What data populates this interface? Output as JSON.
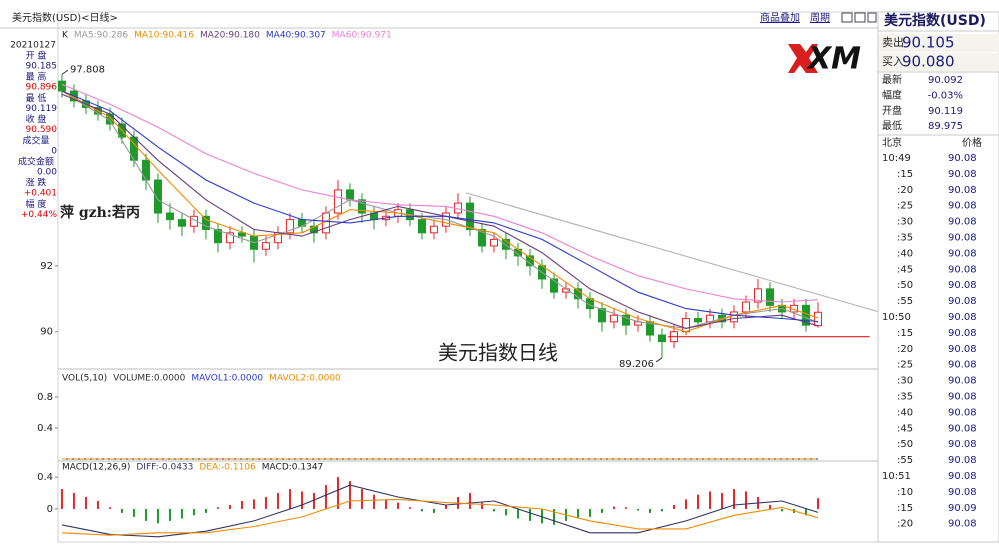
{
  "header": {
    "title": "美元指数(USD)<日线>",
    "links": [
      "商品叠加",
      "周期"
    ]
  },
  "info_panel": {
    "date": "20210127",
    "items": [
      {
        "label": "开 盘",
        "value": "90.185",
        "color": "#1a1a80"
      },
      {
        "label": "最 高",
        "value": "90.896",
        "color": "#e00000"
      },
      {
        "label": "最 低",
        "value": "90.119",
        "color": "#1a1a80"
      },
      {
        "label": "收 盘",
        "value": "90.590",
        "color": "#e00000"
      },
      {
        "label": "成交量",
        "value": "0",
        "color": "#1a1a80"
      },
      {
        "label": "成交金额",
        "value": "0.00",
        "color": "#1a1a80"
      },
      {
        "label": "涨 跌",
        "value": "+0.401",
        "color": "#e00000"
      },
      {
        "label": "幅 度",
        "value": "+0.44%",
        "color": "#e00000"
      }
    ]
  },
  "chart_data": [
    {
      "type": "candlestick",
      "label": "K",
      "xlim": [
        -0.33,
        68
      ],
      "ylim": [
        88.9,
        99.15
      ],
      "yticks": [
        90,
        92
      ],
      "up_color": "#e8262a",
      "down_color": "#1f9a2a",
      "open": [
        97.6,
        97.3,
        97.0,
        96.8,
        96.6,
        96.3,
        95.9,
        95.2,
        94.6,
        93.6,
        93.4,
        93.2,
        93.5,
        93.1,
        92.7,
        93.0,
        92.9,
        92.5,
        92.7,
        93.0,
        93.4,
        93.2,
        93.0,
        93.6,
        94.3,
        94.0,
        93.6,
        93.4,
        93.5,
        93.7,
        93.4,
        93.0,
        93.2,
        93.6,
        93.9,
        93.1,
        92.6,
        92.8,
        92.5,
        92.3,
        92.0,
        91.6,
        91.2,
        91.3,
        91.0,
        90.7,
        90.3,
        90.5,
        90.2,
        90.3,
        89.9,
        89.7,
        90.0,
        90.4,
        90.3,
        90.5,
        90.3,
        90.6,
        90.9,
        91.3,
        90.8,
        90.6,
        90.8,
        90.185
      ],
      "high": [
        97.808,
        97.5,
        97.2,
        97.0,
        96.8,
        96.5,
        96.1,
        95.4,
        94.8,
        93.9,
        93.6,
        93.7,
        93.7,
        93.3,
        93.2,
        93.2,
        93.1,
        92.9,
        93.2,
        93.6,
        93.6,
        93.4,
        93.8,
        94.6,
        94.5,
        94.2,
        93.8,
        93.7,
        93.9,
        93.9,
        93.6,
        93.4,
        93.8,
        94.2,
        94.1,
        93.3,
        93.0,
        93.0,
        92.7,
        92.5,
        92.2,
        91.8,
        91.5,
        91.5,
        91.2,
        90.9,
        90.7,
        90.7,
        90.5,
        90.5,
        90.1,
        90.2,
        90.6,
        90.6,
        90.7,
        90.7,
        90.8,
        91.1,
        91.6,
        91.5,
        91.0,
        91.0,
        91.0,
        90.896
      ],
      "low": [
        97.1,
        96.8,
        96.6,
        96.4,
        96.1,
        95.7,
        95.0,
        94.3,
        93.3,
        93.1,
        92.9,
        93.0,
        92.8,
        92.4,
        92.5,
        92.7,
        92.1,
        92.3,
        92.5,
        92.8,
        93.0,
        92.7,
        92.8,
        93.4,
        93.8,
        93.3,
        93.1,
        93.2,
        93.3,
        93.2,
        92.8,
        92.8,
        93.0,
        93.4,
        92.9,
        92.4,
        92.4,
        92.2,
        92.0,
        91.7,
        91.3,
        91.0,
        91.0,
        90.7,
        90.4,
        90.0,
        90.1,
        89.9,
        90.0,
        89.7,
        89.206,
        89.5,
        89.9,
        90.1,
        90.1,
        90.1,
        90.1,
        90.4,
        90.7,
        90.6,
        90.4,
        90.4,
        90.0,
        90.119
      ],
      "close": [
        97.3,
        97.0,
        96.8,
        96.6,
        96.3,
        95.9,
        95.2,
        94.6,
        93.6,
        93.4,
        93.2,
        93.5,
        93.1,
        92.7,
        93.0,
        92.9,
        92.5,
        92.7,
        93.0,
        93.4,
        93.2,
        93.0,
        93.6,
        94.3,
        94.0,
        93.6,
        93.4,
        93.5,
        93.7,
        93.4,
        93.0,
        93.2,
        93.6,
        93.9,
        93.1,
        92.6,
        92.8,
        92.5,
        92.3,
        92.0,
        91.6,
        91.2,
        91.3,
        91.0,
        90.7,
        90.3,
        90.5,
        90.2,
        90.3,
        89.9,
        89.7,
        90.0,
        90.4,
        90.3,
        90.5,
        90.3,
        90.6,
        90.9,
        91.3,
        90.8,
        90.6,
        90.8,
        90.2,
        90.59
      ],
      "series": [
        {
          "name": "MA5:90.286",
          "color": "#9a9a9a",
          "x": [
            0,
            4,
            8,
            12,
            16,
            20,
            24,
            28,
            32,
            36,
            40,
            44,
            48,
            52,
            56,
            60,
            63
          ],
          "values": [
            97.3,
            96.4,
            94.0,
            93.2,
            92.7,
            93.2,
            94.0,
            93.6,
            93.4,
            92.9,
            91.8,
            90.8,
            90.3,
            90.1,
            90.5,
            90.7,
            90.286
          ]
        },
        {
          "name": "MA10:90.416",
          "color": "#f08c00",
          "x": [
            0,
            4,
            8,
            12,
            16,
            20,
            24,
            28,
            32,
            36,
            40,
            44,
            48,
            52,
            56,
            60,
            63
          ],
          "values": [
            97.3,
            96.5,
            94.9,
            93.4,
            92.9,
            93.0,
            93.7,
            93.6,
            93.3,
            93.0,
            92.0,
            91.0,
            90.4,
            90.0,
            90.5,
            90.8,
            90.42
          ]
        },
        {
          "name": "MA20:90.180",
          "color": "#6a3a7a",
          "x": [
            0,
            4,
            8,
            12,
            16,
            20,
            24,
            28,
            32,
            36,
            40,
            44,
            48,
            52,
            56,
            60,
            63
          ],
          "values": [
            97.2,
            96.6,
            95.2,
            94.0,
            93.1,
            92.9,
            93.4,
            93.8,
            93.5,
            93.2,
            92.4,
            91.3,
            90.6,
            90.1,
            90.4,
            90.5,
            90.18
          ]
        },
        {
          "name": "MA40:90.307",
          "color": "#2a3ad0",
          "x": [
            0,
            4,
            8,
            12,
            16,
            20,
            24,
            28,
            32,
            36,
            40,
            44,
            48,
            52,
            56,
            60,
            63
          ],
          "values": [
            97.3,
            96.7,
            95.6,
            94.6,
            93.9,
            93.4,
            93.3,
            93.5,
            93.5,
            93.3,
            92.8,
            92.0,
            91.2,
            90.7,
            90.5,
            90.4,
            90.31
          ]
        },
        {
          "name": "MA60:90.971",
          "color": "#ec80d8",
          "x": [
            0,
            4,
            8,
            12,
            16,
            20,
            24,
            28,
            32,
            36,
            40,
            44,
            48,
            52,
            56,
            60,
            63
          ],
          "values": [
            97.5,
            96.9,
            96.2,
            95.4,
            94.8,
            94.3,
            94.0,
            93.85,
            93.8,
            93.5,
            93.0,
            92.3,
            91.7,
            91.3,
            91.0,
            90.9,
            90.97
          ]
        }
      ],
      "overlays": [
        {
          "color": "#b4b4b4",
          "x": [
            33.67,
            68
          ],
          "values": [
            94.21,
            90.61
          ]
        },
        {
          "color": "#e02020",
          "x": [
            50.5,
            67.3
          ],
          "values": [
            89.85,
            89.85
          ]
        }
      ],
      "annotations": [
        {
          "label": "97.808",
          "x": 0,
          "y": 97.808
        },
        {
          "label": "89.206",
          "x": 50,
          "y": 89.206
        }
      ],
      "texts": [
        "萍  gzh:若丙",
        "美元指数日线"
      ]
    },
    {
      "type": "volume",
      "label": "VOL(5,10)",
      "xlim": [
        -0.33,
        68
      ],
      "ylim": [
        0,
        1.12
      ],
      "yticks": [
        0.4,
        0.8
      ],
      "series": [
        {
          "name": "VOLUME:0.0000",
          "color": "#333333",
          "x": [
            0,
            63
          ],
          "values": [
            0,
            0
          ]
        },
        {
          "name": "MAVOL1:0.0000",
          "color": "#2a3ad0",
          "x": [
            0,
            63
          ],
          "values": [
            0,
            0
          ]
        },
        {
          "name": "MAVOL2:0.0000",
          "color": "#f08c00",
          "x": [
            0,
            63
          ],
          "values": [
            0,
            0
          ]
        }
      ]
    },
    {
      "type": "macd",
      "label": "MACD(12,26,9)",
      "xlim": [
        -0.33,
        68
      ],
      "ylim": [
        -0.39,
        0.59
      ],
      "yticks": [
        0,
        0.4
      ],
      "up_color": "#e8262a",
      "down_color": "#1f9a2a",
      "series": [
        {
          "name": "DIFF:-0.0433",
          "color": "#333366",
          "x": [
            0,
            4,
            8,
            12,
            16,
            20,
            24,
            28,
            32,
            36,
            40,
            44,
            48,
            52,
            56,
            60,
            63
          ],
          "values": [
            -0.2,
            -0.32,
            -0.35,
            -0.28,
            -0.15,
            0.05,
            0.3,
            0.15,
            0.05,
            0.1,
            -0.1,
            -0.3,
            -0.3,
            -0.15,
            0.05,
            0.1,
            -0.0433
          ]
        },
        {
          "name": "DEA:-0.1106",
          "color": "#f08c00",
          "x": [
            0,
            4,
            8,
            12,
            16,
            20,
            24,
            28,
            32,
            36,
            40,
            44,
            48,
            52,
            56,
            60,
            63
          ],
          "values": [
            -0.3,
            -0.33,
            -0.3,
            -0.3,
            -0.22,
            -0.1,
            0.1,
            0.12,
            0.08,
            0.05,
            0.0,
            -0.15,
            -0.25,
            -0.25,
            -0.08,
            0.02,
            -0.1106
          ]
        }
      ],
      "histogram": {
        "name": "MACD:0.1347",
        "values": [
          0.25,
          0.2,
          0.15,
          0.1,
          0.02,
          -0.05,
          -0.1,
          -0.15,
          -0.18,
          -0.15,
          -0.12,
          -0.08,
          -0.05,
          0.02,
          0.05,
          0.1,
          0.12,
          0.15,
          0.2,
          0.25,
          0.22,
          0.2,
          0.3,
          0.4,
          0.35,
          0.25,
          0.18,
          0.12,
          0.08,
          0.02,
          -0.03,
          -0.05,
          0.05,
          0.15,
          0.2,
          0.08,
          -0.03,
          -0.08,
          -0.12,
          -0.15,
          -0.18,
          -0.2,
          -0.15,
          -0.12,
          -0.1,
          -0.05,
          0.03,
          0.02,
          -0.02,
          -0.05,
          -0.03,
          0.05,
          0.12,
          0.18,
          0.22,
          0.2,
          0.25,
          0.22,
          0.15,
          0.05,
          -0.03,
          -0.05,
          -0.08,
          0.1347
        ]
      }
    }
  ],
  "quote_panel": {
    "title": "美元指数(USD)",
    "rows": [
      [
        "卖出",
        "90.105"
      ],
      [
        "买入",
        "90.080"
      ]
    ],
    "stats": [
      [
        "最新",
        "90.092"
      ],
      [
        "幅度",
        "-0.03%"
      ],
      [
        "开盘",
        "90.119"
      ],
      [
        "最低",
        "89.975"
      ]
    ],
    "ticks_header": [
      "北京",
      "价格"
    ],
    "ticks": [
      [
        "10:49",
        "90.08"
      ],
      [
        ":15",
        "90.08"
      ],
      [
        ":20",
        "90.08"
      ],
      [
        ":25",
        "90.08"
      ],
      [
        ":30",
        "90.08"
      ],
      [
        ":35",
        "90.08"
      ],
      [
        ":40",
        "90.08"
      ],
      [
        ":45",
        "90.08"
      ],
      [
        ":50",
        "90.08"
      ],
      [
        ":55",
        "90.08"
      ],
      [
        "10:50",
        "90.08"
      ],
      [
        ":15",
        "90.08"
      ],
      [
        ":20",
        "90.08"
      ],
      [
        ":25",
        "90.08"
      ],
      [
        ":30",
        "90.08"
      ],
      [
        ":35",
        "90.08"
      ],
      [
        ":40",
        "90.08"
      ],
      [
        ":45",
        "90.08"
      ],
      [
        ":50",
        "90.08"
      ],
      [
        ":55",
        "90.08"
      ],
      [
        "10:51",
        "90.08"
      ],
      [
        ":10",
        "90.08"
      ],
      [
        ":15",
        "90.09"
      ],
      [
        ":20",
        "90.08"
      ]
    ]
  }
}
